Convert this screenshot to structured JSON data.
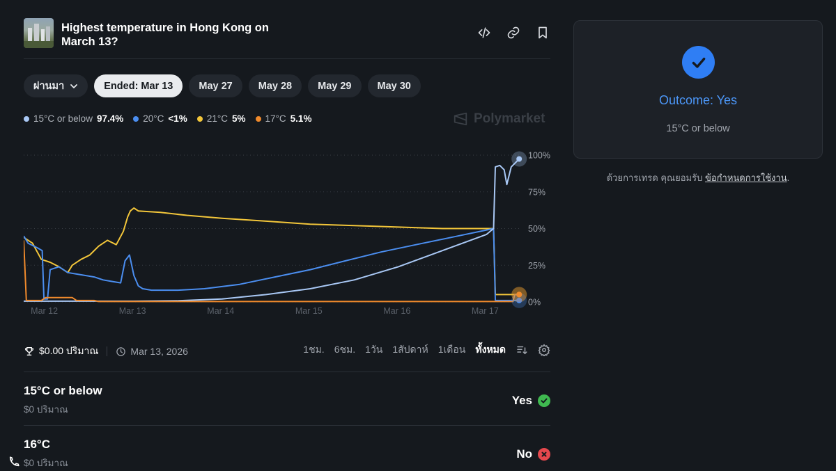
{
  "market": {
    "title": "Highest temperature in Hong Kong on March 13?"
  },
  "date_pills": [
    {
      "label": "ผ่านมา",
      "has_dropdown": true,
      "active": false
    },
    {
      "label": "Ended: Mar 13",
      "active": true
    },
    {
      "label": "May 27",
      "active": false
    },
    {
      "label": "May 28",
      "active": false
    },
    {
      "label": "May 29",
      "active": false
    },
    {
      "label": "May 30",
      "active": false
    }
  ],
  "legend": [
    {
      "name": "15°C or below",
      "value": "97.4%",
      "color": "#a9c8f5"
    },
    {
      "name": "20°C",
      "value": "<1%",
      "color": "#4b8ef0"
    },
    {
      "name": "21°C",
      "value": "5%",
      "color": "#f3c63a"
    },
    {
      "name": "17°C",
      "value": "5.1%",
      "color": "#f08a2c"
    }
  ],
  "watermark": "Polymarket",
  "chart_data": {
    "type": "line",
    "x_ticks": [
      "Mar 12",
      "Mar 13",
      "Mar 14",
      "Mar 15",
      "Mar 16",
      "Mar 17"
    ],
    "y_ticks": [
      "100%",
      "75%",
      "50%",
      "25%",
      "0%"
    ],
    "ylim": [
      0,
      100
    ],
    "xlim": [
      11.75,
      17.4
    ],
    "grid": true,
    "series": [
      {
        "name": "21°C",
        "color": "#f3c63a",
        "points": [
          [
            11.75,
            44
          ],
          [
            11.85,
            40
          ],
          [
            11.95,
            29
          ],
          [
            12.05,
            27
          ],
          [
            12.15,
            24
          ],
          [
            12.25,
            20
          ],
          [
            12.3,
            25
          ],
          [
            12.4,
            29
          ],
          [
            12.5,
            32
          ],
          [
            12.6,
            38
          ],
          [
            12.7,
            42
          ],
          [
            12.8,
            39
          ],
          [
            12.88,
            48
          ],
          [
            12.93,
            58
          ],
          [
            12.96,
            62
          ],
          [
            13.0,
            64
          ],
          [
            13.05,
            62
          ],
          [
            13.3,
            61
          ],
          [
            13.6,
            59
          ],
          [
            14.0,
            57
          ],
          [
            14.5,
            55
          ],
          [
            15.0,
            53
          ],
          [
            15.5,
            52
          ],
          [
            16.0,
            51
          ],
          [
            16.5,
            50
          ],
          [
            17.08,
            50
          ],
          [
            17.1,
            5
          ],
          [
            17.37,
            5
          ]
        ]
      },
      {
        "name": "20°C",
        "color": "#4b8ef0",
        "points": [
          [
            11.75,
            45
          ],
          [
            11.8,
            40
          ],
          [
            11.9,
            37
          ],
          [
            11.96,
            35
          ],
          [
            11.98,
            2
          ],
          [
            12.02,
            2
          ],
          [
            12.05,
            22
          ],
          [
            12.15,
            24
          ],
          [
            12.25,
            20
          ],
          [
            12.35,
            19
          ],
          [
            12.45,
            18
          ],
          [
            12.55,
            17
          ],
          [
            12.65,
            15
          ],
          [
            12.75,
            14
          ],
          [
            12.85,
            13
          ],
          [
            12.9,
            28
          ],
          [
            12.95,
            32
          ],
          [
            13.0,
            18
          ],
          [
            13.05,
            11
          ],
          [
            13.1,
            9
          ],
          [
            13.2,
            8
          ],
          [
            13.5,
            8
          ],
          [
            13.8,
            9
          ],
          [
            14.2,
            12
          ],
          [
            14.6,
            17
          ],
          [
            15.0,
            22
          ],
          [
            15.4,
            28
          ],
          [
            15.8,
            34
          ],
          [
            16.2,
            39
          ],
          [
            16.6,
            44
          ],
          [
            17.08,
            50
          ],
          [
            17.1,
            1
          ],
          [
            17.37,
            1
          ]
        ]
      },
      {
        "name": "15°C or below",
        "color": "#a9c8f5",
        "points": [
          [
            11.75,
            0.5
          ],
          [
            12.5,
            0.5
          ],
          [
            13.0,
            0.5
          ],
          [
            13.5,
            0.8
          ],
          [
            14.0,
            2
          ],
          [
            14.5,
            5
          ],
          [
            15.0,
            9
          ],
          [
            15.5,
            15
          ],
          [
            16.0,
            24
          ],
          [
            16.5,
            35
          ],
          [
            17.0,
            46
          ],
          [
            17.08,
            50
          ],
          [
            17.1,
            92
          ],
          [
            17.15,
            93
          ],
          [
            17.2,
            90
          ],
          [
            17.23,
            80
          ],
          [
            17.28,
            92
          ],
          [
            17.37,
            97.4
          ]
        ]
      },
      {
        "name": "17°C",
        "color": "#f08a2c",
        "points": [
          [
            11.75,
            42
          ],
          [
            11.78,
            1
          ],
          [
            11.95,
            1
          ],
          [
            12.0,
            3
          ],
          [
            12.1,
            3
          ],
          [
            12.3,
            3
          ],
          [
            12.35,
            1
          ],
          [
            12.55,
            1
          ],
          [
            12.6,
            0.3
          ],
          [
            17.08,
            0.3
          ],
          [
            17.1,
            0.3
          ],
          [
            17.3,
            0.3
          ],
          [
            17.32,
            5.1
          ],
          [
            17.37,
            5.1
          ]
        ]
      }
    ]
  },
  "volume": {
    "amount": "$0.00 ปริมาณ",
    "date": "Mar 13, 2026"
  },
  "time_ranges": [
    {
      "label": "1ชม.",
      "active": false
    },
    {
      "label": "6ชม.",
      "active": false
    },
    {
      "label": "1วัน",
      "active": false
    },
    {
      "label": "1สัปดาห์",
      "active": false
    },
    {
      "label": "1เดือน",
      "active": false
    },
    {
      "label": "ทั้งหมด",
      "active": true
    }
  ],
  "outcomes": [
    {
      "name": "15°C or below",
      "volume": "$0 ปริมาณ",
      "result": "Yes",
      "result_color": "#3fb950"
    },
    {
      "name": "16°C",
      "volume": "$0 ปริมาณ",
      "result": "No",
      "result_color": "#e5484d"
    }
  ],
  "outcome_card": {
    "title": "Outcome: Yes",
    "subtitle": "15°C or below"
  },
  "terms": {
    "prefix": "ด้วยการเทรด คุณยอมรับ ",
    "link": "ข้อกำหนดการใช้งาน",
    "suffix": "."
  }
}
